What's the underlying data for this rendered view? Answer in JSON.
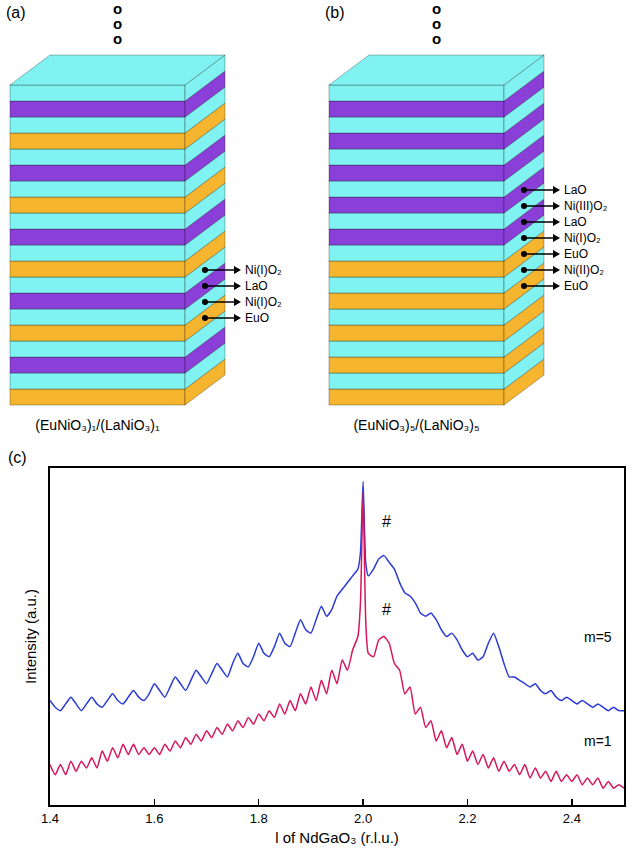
{
  "diagram": {
    "panels": [
      {
        "label": "(a)",
        "caption": "(EuNiO₃)₁/(LaNiO₃)₁",
        "ellipsis": [
          "o",
          "o",
          "o"
        ],
        "layers": [
          "#f5b52e",
          "#80f2f2",
          "#8a3fd8",
          "#80f2f2",
          "#f5b52e",
          "#80f2f2",
          "#8a3fd8",
          "#80f2f2",
          "#f5b52e",
          "#80f2f2",
          "#8a3fd8",
          "#80f2f2",
          "#f5b52e",
          "#80f2f2",
          "#8a3fd8",
          "#80f2f2",
          "#f5b52e",
          "#80f2f2",
          "#8a3fd8",
          "#80f2f2"
        ],
        "labels": [
          {
            "layer": 7,
            "text": "Ni(I)O₂"
          },
          {
            "layer": 6,
            "text": "LaO"
          },
          {
            "layer": 5,
            "text": "Ni(I)O₂"
          },
          {
            "layer": 4,
            "text": "EuO"
          }
        ]
      },
      {
        "label": "(b)",
        "caption": "(EuNiO₃)₅/(LaNiO₃)₅",
        "ellipsis": [
          "o",
          "o",
          "o"
        ],
        "layers": [
          "#f5b52e",
          "#80f2f2",
          "#f5b52e",
          "#80f2f2",
          "#f5b52e",
          "#80f2f2",
          "#f5b52e",
          "#80f2f2",
          "#f5b52e",
          "#80f2f2",
          "#8a3fd8",
          "#80f2f2",
          "#8a3fd8",
          "#80f2f2",
          "#8a3fd8",
          "#80f2f2",
          "#8a3fd8",
          "#80f2f2",
          "#8a3fd8",
          "#80f2f2"
        ],
        "labels": [
          {
            "layer": 12,
            "text": "LaO"
          },
          {
            "layer": 11,
            "text": "Ni(III)O₂"
          },
          {
            "layer": 10,
            "text": "LaO"
          },
          {
            "layer": 9,
            "text": "Ni(I)O₂"
          },
          {
            "layer": 8,
            "text": "EuO"
          },
          {
            "layer": 7,
            "text": "Ni(II)O₂"
          },
          {
            "layer": 6,
            "text": "EuO"
          }
        ]
      }
    ]
  },
  "chart_data": {
    "type": "line",
    "panel": "(c)",
    "xlabel": "l of NdGaO₃ (r.l.u.)",
    "ylabel": "Intensity (a.u.)",
    "xlim": [
      1.4,
      2.5
    ],
    "ylim": [
      0,
      100
    ],
    "xticks": [
      1.4,
      1.6,
      1.8,
      {
        "value": 2,
        "label": "2.0"
      },
      2.2,
      2.4
    ],
    "yticks": [],
    "tick_labels": "x",
    "grid": false,
    "x": [
      1.4,
      1.41,
      1.42,
      1.43,
      1.44,
      1.45,
      1.46,
      1.47,
      1.48,
      1.49,
      1.5,
      1.51,
      1.52,
      1.53,
      1.54,
      1.55,
      1.56,
      1.57,
      1.58,
      1.59,
      1.6,
      1.61,
      1.62,
      1.63,
      1.64,
      1.65,
      1.66,
      1.67,
      1.68,
      1.69,
      1.7,
      1.71,
      1.72,
      1.73,
      1.74,
      1.75,
      1.76,
      1.77,
      1.78,
      1.79,
      1.8,
      1.81,
      1.82,
      1.83,
      1.84,
      1.85,
      1.86,
      1.87,
      1.88,
      1.89,
      1.9,
      1.91,
      1.92,
      1.93,
      1.94,
      1.95,
      1.96,
      1.97,
      1.98,
      1.99,
      1.995,
      2,
      2.005,
      2.01,
      2.02,
      2.03,
      2.04,
      2.05,
      2.06,
      2.07,
      2.08,
      2.09,
      2.1,
      2.11,
      2.12,
      2.13,
      2.14,
      2.15,
      2.16,
      2.17,
      2.18,
      2.19,
      2.2,
      2.21,
      2.22,
      2.23,
      2.24,
      2.25,
      2.26,
      2.27,
      2.28,
      2.29,
      2.3,
      2.31,
      2.32,
      2.33,
      2.34,
      2.35,
      2.36,
      2.37,
      2.38,
      2.39,
      2.4,
      2.41,
      2.42,
      2.43,
      2.44,
      2.45,
      2.46,
      2.47,
      2.48,
      2.49,
      2.5
    ],
    "series": [
      {
        "name": "m=5",
        "color": "#2b3bd6",
        "label_x": 2.45,
        "label_y": 50,
        "values": [
          31,
          29,
          28,
          30,
          32,
          30,
          28,
          30,
          32,
          30,
          29,
          31,
          33,
          31,
          30,
          32,
          34,
          32,
          31,
          33,
          36,
          34,
          32,
          35,
          38,
          36,
          34,
          37,
          40,
          38,
          36,
          39,
          42,
          40,
          38,
          42,
          45,
          42,
          41,
          44,
          48,
          45,
          44,
          47,
          51,
          48,
          47,
          51,
          55,
          52,
          51,
          55,
          59,
          56,
          58,
          62,
          64,
          66,
          68,
          70,
          75,
          96,
          72,
          68,
          70,
          73,
          74,
          72,
          70,
          66,
          63,
          62,
          60,
          57,
          56,
          57,
          55,
          52,
          50,
          51,
          49,
          46,
          44,
          45,
          43,
          44,
          48,
          51,
          47,
          42,
          38,
          38,
          37,
          36,
          35,
          36,
          34,
          33,
          34,
          32,
          31,
          32,
          31,
          30,
          31,
          30,
          29,
          30,
          29,
          28,
          29,
          28,
          28
        ]
      },
      {
        "name": "m=1",
        "color": "#d6175c",
        "label_x": 2.45,
        "label_y": 19,
        "values": [
          12,
          9,
          12,
          9,
          13,
          10,
          13,
          11,
          14,
          11,
          16,
          13,
          17,
          14,
          18,
          15,
          18,
          15,
          17,
          15,
          17,
          15,
          18,
          16,
          19,
          17,
          20,
          18,
          21,
          19,
          22,
          20,
          23,
          21,
          24,
          22,
          25,
          23,
          26,
          24,
          27,
          25,
          28,
          26,
          30,
          27,
          31,
          28,
          33,
          30,
          35,
          31,
          37,
          33,
          40,
          36,
          43,
          40,
          46,
          50,
          60,
          93,
          55,
          45,
          44,
          49,
          50,
          48,
          42,
          40,
          33,
          35,
          27,
          29,
          23,
          25,
          19,
          22,
          17,
          20,
          15,
          18,
          13,
          16,
          12,
          15,
          11,
          14,
          10,
          13,
          10,
          12,
          9,
          12,
          8,
          11,
          8,
          10,
          7,
          10,
          7,
          9,
          7,
          9,
          6,
          8,
          6,
          8,
          5,
          7,
          5,
          6,
          5
        ]
      }
    ],
    "annotations": [
      {
        "text": "#",
        "x": 2.045,
        "y": 84
      },
      {
        "text": "#",
        "x": 2.045,
        "y": 58
      }
    ]
  }
}
